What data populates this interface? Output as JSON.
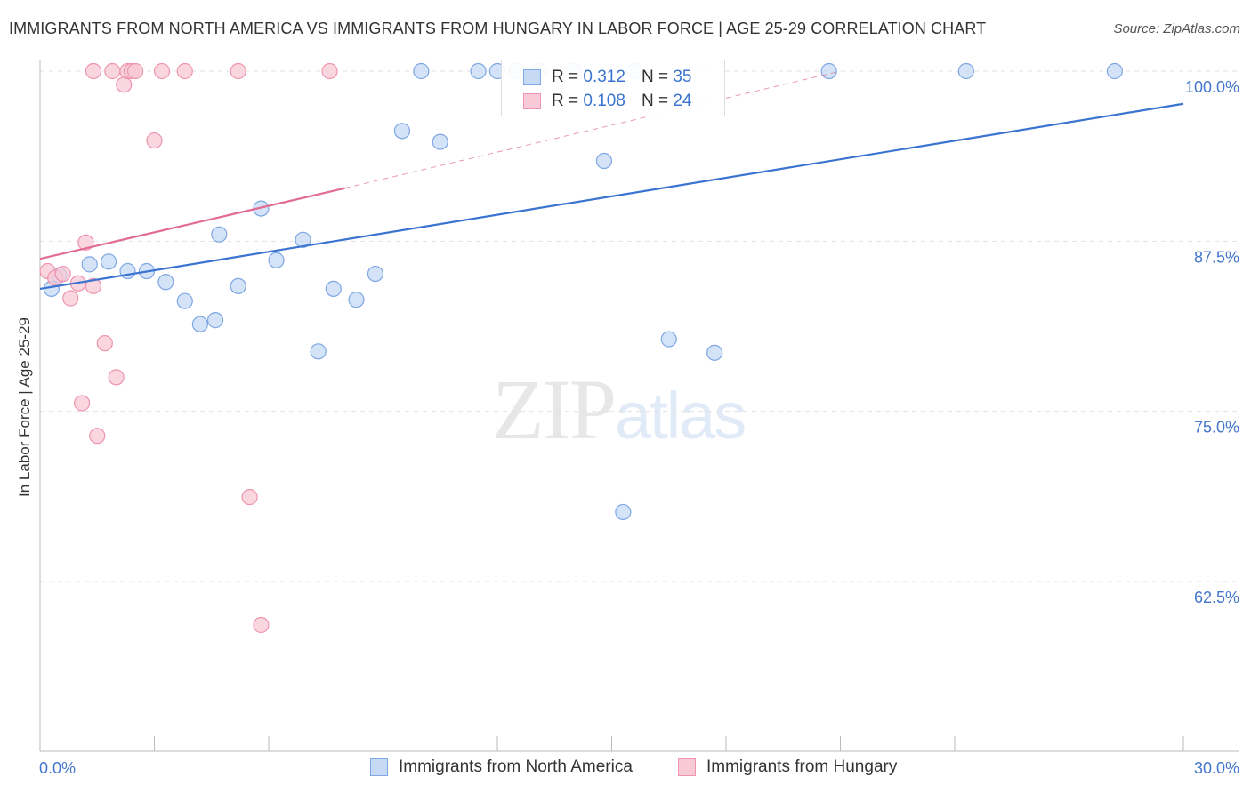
{
  "title": "IMMIGRANTS FROM NORTH AMERICA VS IMMIGRANTS FROM HUNGARY IN LABOR FORCE | AGE 25-29 CORRELATION CHART",
  "source": "Source: ZipAtlas.com",
  "watermark": {
    "zip": "ZIP",
    "atlas": "atlas"
  },
  "legend_top": {
    "rows": [
      {
        "r_label": "R = ",
        "r_value": "0.312",
        "n_label": "N = ",
        "n_value": "35"
      },
      {
        "r_label": "R = ",
        "r_value": "0.108",
        "n_label": "N = ",
        "n_value": "24"
      }
    ]
  },
  "legend_bottom": [
    "Immigrants from North America",
    "Immigrants from Hungary"
  ],
  "colors": {
    "blue_fill": "#c6d9f5",
    "blue_stroke": "#7ea7e3",
    "blue_line": "#3b74d0",
    "pink_fill": "#f8c9d6",
    "pink_stroke": "#ee94ae",
    "pink_line": "#e26d93",
    "tick_label": "#4477cc",
    "grid": "#e2e2e2"
  },
  "chart_data": {
    "type": "scatter",
    "title": "IMMIGRANTS FROM NORTH AMERICA VS IMMIGRANTS FROM HUNGARY IN LABOR FORCE | AGE 25-29 CORRELATION CHART",
    "xlabel": "",
    "ylabel": "In Labor Force | Age 25-29",
    "xlim": [
      0,
      30
    ],
    "ylim": [
      52,
      101
    ],
    "x_tick_labels": [
      "0.0%",
      "30.0%"
    ],
    "y_ticks": [
      62.5,
      75.0,
      87.5,
      100.0
    ],
    "y_tick_labels": [
      "62.5%",
      "75.0%",
      "87.5%",
      "100.0%"
    ],
    "grid": true,
    "legend_position": "top-center",
    "series": [
      {
        "name": "Immigrants from North America",
        "points": [
          [
            0.3,
            84.0
          ],
          [
            0.5,
            85.0
          ],
          [
            1.3,
            85.8
          ],
          [
            1.8,
            86.0
          ],
          [
            2.3,
            85.3
          ],
          [
            2.8,
            85.3
          ],
          [
            3.3,
            84.5
          ],
          [
            3.8,
            83.1
          ],
          [
            4.2,
            81.4
          ],
          [
            4.6,
            81.7
          ],
          [
            4.7,
            88.0
          ],
          [
            5.2,
            84.2
          ],
          [
            5.8,
            89.9
          ],
          [
            6.2,
            86.1
          ],
          [
            6.9,
            87.6
          ],
          [
            7.3,
            79.4
          ],
          [
            7.7,
            84.0
          ],
          [
            8.3,
            83.2
          ],
          [
            8.8,
            85.1
          ],
          [
            9.5,
            95.6
          ],
          [
            10.0,
            100.0
          ],
          [
            10.5,
            94.8
          ],
          [
            11.5,
            100.0
          ],
          [
            12.0,
            100.0
          ],
          [
            12.5,
            100.0
          ],
          [
            13.1,
            100.0
          ],
          [
            14.0,
            100.0
          ],
          [
            14.8,
            93.4
          ],
          [
            15.3,
            67.6
          ],
          [
            15.6,
            100.0
          ],
          [
            16.5,
            80.3
          ],
          [
            17.7,
            79.3
          ],
          [
            20.7,
            100.0
          ],
          [
            24.3,
            100.0
          ],
          [
            28.2,
            100.0
          ]
        ]
      },
      {
        "name": "Immigrants from Hungary",
        "points": [
          [
            0.2,
            85.3
          ],
          [
            0.4,
            84.8
          ],
          [
            0.6,
            85.1
          ],
          [
            0.8,
            83.3
          ],
          [
            1.0,
            84.4
          ],
          [
            1.1,
            75.6
          ],
          [
            1.2,
            87.4
          ],
          [
            1.4,
            84.2
          ],
          [
            1.5,
            73.2
          ],
          [
            1.7,
            80.0
          ],
          [
            1.9,
            100.0
          ],
          [
            2.0,
            77.5
          ],
          [
            2.2,
            99.0
          ],
          [
            2.3,
            100.0
          ],
          [
            2.4,
            100.0
          ],
          [
            2.5,
            100.0
          ],
          [
            3.2,
            100.0
          ],
          [
            3.0,
            94.9
          ],
          [
            3.8,
            100.0
          ],
          [
            5.2,
            100.0
          ],
          [
            5.5,
            68.7
          ],
          [
            5.8,
            59.3
          ],
          [
            7.6,
            100.0
          ],
          [
            1.4,
            100.0
          ]
        ]
      }
    ],
    "trend_lines": [
      {
        "series": "Immigrants from North America",
        "from": [
          0,
          84.0
        ],
        "to": [
          30,
          97.6
        ],
        "style": "solid"
      },
      {
        "series": "Immigrants from Hungary",
        "from": [
          0,
          86.2
        ],
        "to": [
          8,
          91.4
        ],
        "style": "solid"
      },
      {
        "series": "Immigrants from Hungary",
        "from": [
          8,
          91.4
        ],
        "to": [
          21,
          100.0
        ],
        "style": "dashed"
      }
    ]
  }
}
